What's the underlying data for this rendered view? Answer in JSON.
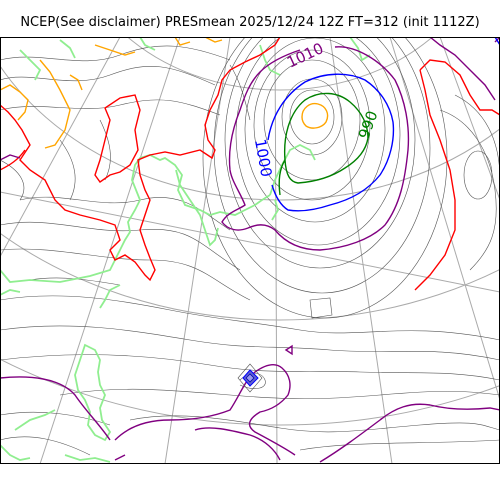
{
  "title": "NCEP(See disclaimer) PRESmean 2025/12/24 12Z FT=312 (init 1112Z)",
  "contour_labels": {
    "label_1010": "1010",
    "label_1000": "1000",
    "label_990": "990"
  },
  "colors": {
    "background": "#ffffff",
    "coast": "#90ee90",
    "graticule": "#aaaaaa",
    "isobar_thin": "#555555",
    "isobar_1020": "#ff0000",
    "isobar_1010": "#800080",
    "isobar_1000": "#0000ff",
    "isobar_990": "#008000",
    "isobar_980": "#ffa500"
  }
}
